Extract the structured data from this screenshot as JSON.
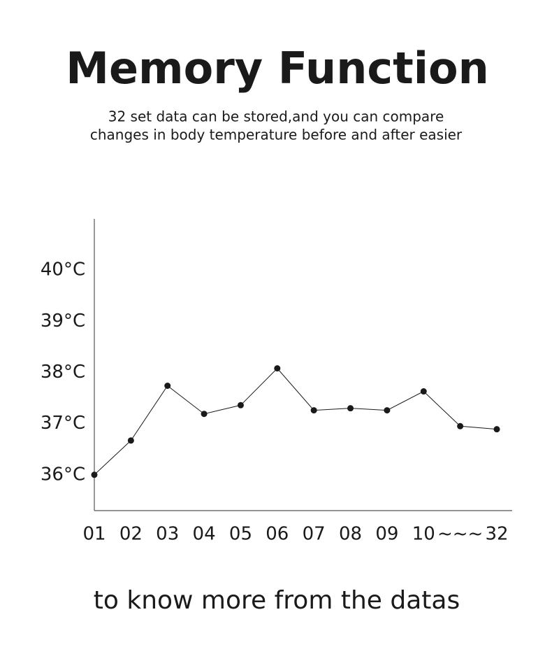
{
  "chart_data": {
    "type": "line",
    "title": "Memory Function",
    "subtitle": [
      "32 set data can be stored,and you can compare",
      "changes in body temperature before and after easier"
    ],
    "categories": [
      "01",
      "02",
      "03",
      "04",
      "05",
      "06",
      "07",
      "08",
      "09",
      "10",
      "~~~",
      "32"
    ],
    "values": [
      36.0,
      36.67,
      37.74,
      37.19,
      37.36,
      38.08,
      37.26,
      37.3,
      37.26,
      37.63,
      36.95,
      36.89
    ],
    "color": "#1a1a1a",
    "ylim": [
      35.3,
      41.0
    ],
    "yticks": [
      {
        "value": 36,
        "label": "36°C"
      },
      {
        "value": 37,
        "label": "37°C"
      },
      {
        "value": 38,
        "label": "38°C"
      },
      {
        "value": 39,
        "label": "39°C"
      },
      {
        "value": 40,
        "label": "40°C"
      }
    ],
    "grid": false
  },
  "footer": "to know more from the datas"
}
